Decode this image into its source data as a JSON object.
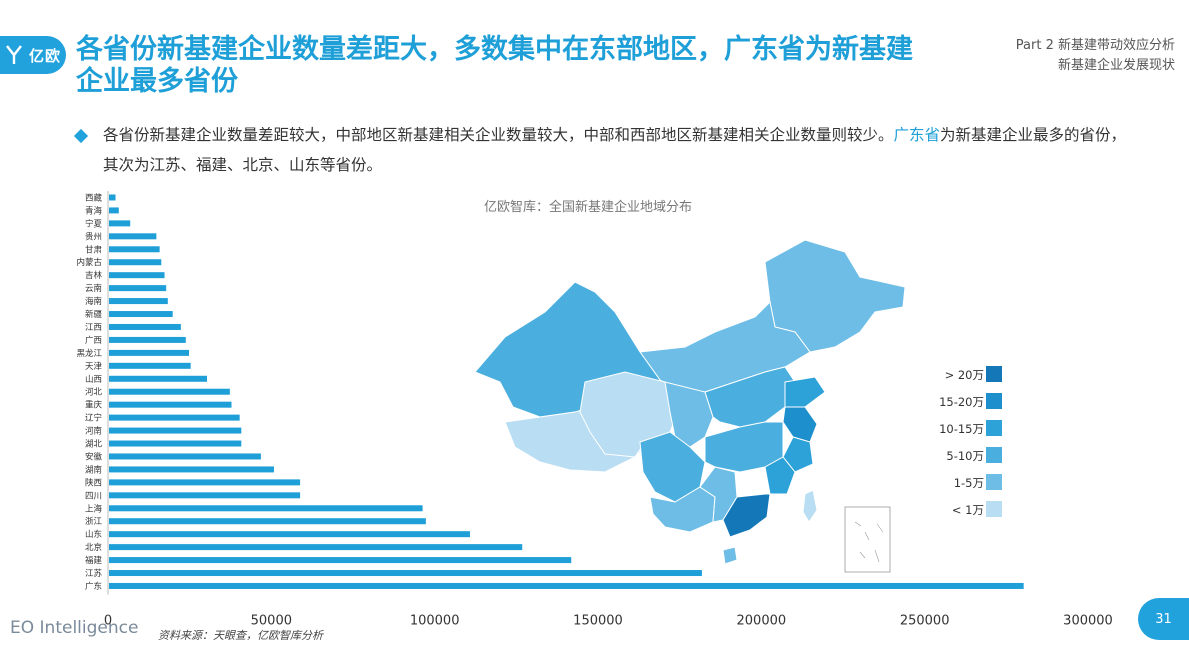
{
  "header": {
    "logo_text": "亿欧",
    "title": "各省份新基建企业数量差距大，多数集中在东部地区，广东省为新基建企业最多省份",
    "part_line1": "Part 2 新基建带动效应分析",
    "part_line2": "新基建企业发展现状"
  },
  "bullet": {
    "text_before": "各省份新基建企业数量差距较大，中部地区新基建相关企业数量较大，中部和西部地区新基建相关企业数量则较少。",
    "highlight": "广东省",
    "text_after": "为新基建企业最多的省份，其次为江苏、福建、北京、山东等省份。"
  },
  "map": {
    "title": "亿欧智库：全国新基建企业地域分布",
    "legend": [
      {
        "label": "> 20万",
        "color": "#1478b8"
      },
      {
        "label": "15-20万",
        "color": "#1d8fcc"
      },
      {
        "label": "10-15万",
        "color": "#2ca2d9"
      },
      {
        "label": "5-10万",
        "color": "#4aaedf"
      },
      {
        "label": "1-5万",
        "color": "#6dbde6"
      },
      {
        "label": "< 1万",
        "color": "#b9ddf2"
      }
    ]
  },
  "chart_data": {
    "type": "bar",
    "orientation": "horizontal",
    "categories": [
      "西藏",
      "青海",
      "宁夏",
      "贵州",
      "甘肃",
      "内蒙古",
      "吉林",
      "云南",
      "海南",
      "新疆",
      "江西",
      "广西",
      "黑龙江",
      "天津",
      "山西",
      "河北",
      "重庆",
      "辽宁",
      "河南",
      "湖北",
      "安徽",
      "湖南",
      "陕西",
      "四川",
      "上海",
      "浙江",
      "山东",
      "北京",
      "福建",
      "江苏",
      "广东"
    ],
    "values": [
      2000,
      3000,
      6500,
      14500,
      15500,
      16000,
      17000,
      17500,
      18000,
      19500,
      22000,
      23500,
      24500,
      25000,
      30000,
      37000,
      37500,
      40000,
      40500,
      40500,
      46500,
      50500,
      58500,
      58500,
      96000,
      97000,
      110500,
      126500,
      141500,
      181500,
      280000
    ],
    "xlim": [
      0,
      300000
    ],
    "xticks": [
      0,
      50000,
      100000,
      150000,
      200000,
      250000,
      300000
    ],
    "bar_color": "#1e9fd8",
    "grid": false
  },
  "footer": {
    "source": "资料来源：天眼查，亿欧智库分析",
    "brand": "EO Intelligence",
    "page": "31"
  }
}
